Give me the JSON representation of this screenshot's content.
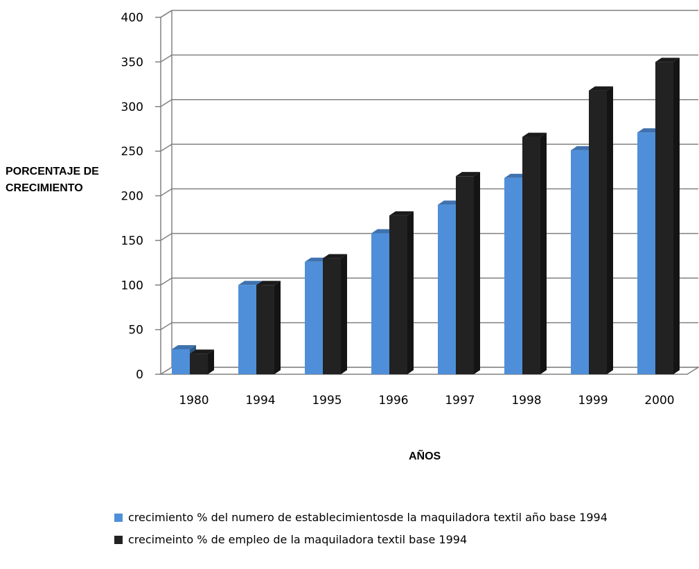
{
  "chart_data": {
    "type": "bar",
    "style": "3d-clustered-column",
    "categories": [
      "1980",
      "1994",
      "1995",
      "1996",
      "1997",
      "1998",
      "1999",
      "2000"
    ],
    "series": [
      {
        "name": "crecimiento % del numero de establecimientosde la maquiladora textil año base 1994",
        "color": "#4f8fd9",
        "values": [
          28,
          100,
          126,
          158,
          190,
          220,
          251,
          271
        ]
      },
      {
        "name": "crecimeinto % de empleo de la maquiladora textil base 1994",
        "color": "#222222",
        "values": [
          23,
          100,
          130,
          178,
          222,
          266,
          318,
          350
        ]
      }
    ],
    "ylim": [
      0,
      400
    ],
    "yticks": [
      0,
      50,
      100,
      150,
      200,
      250,
      300,
      350,
      400
    ],
    "ylabel": "PORCENTAJE DE CRECIMIENTO",
    "xlabel": "AÑOS",
    "grid": true,
    "legend_position": "bottom"
  }
}
